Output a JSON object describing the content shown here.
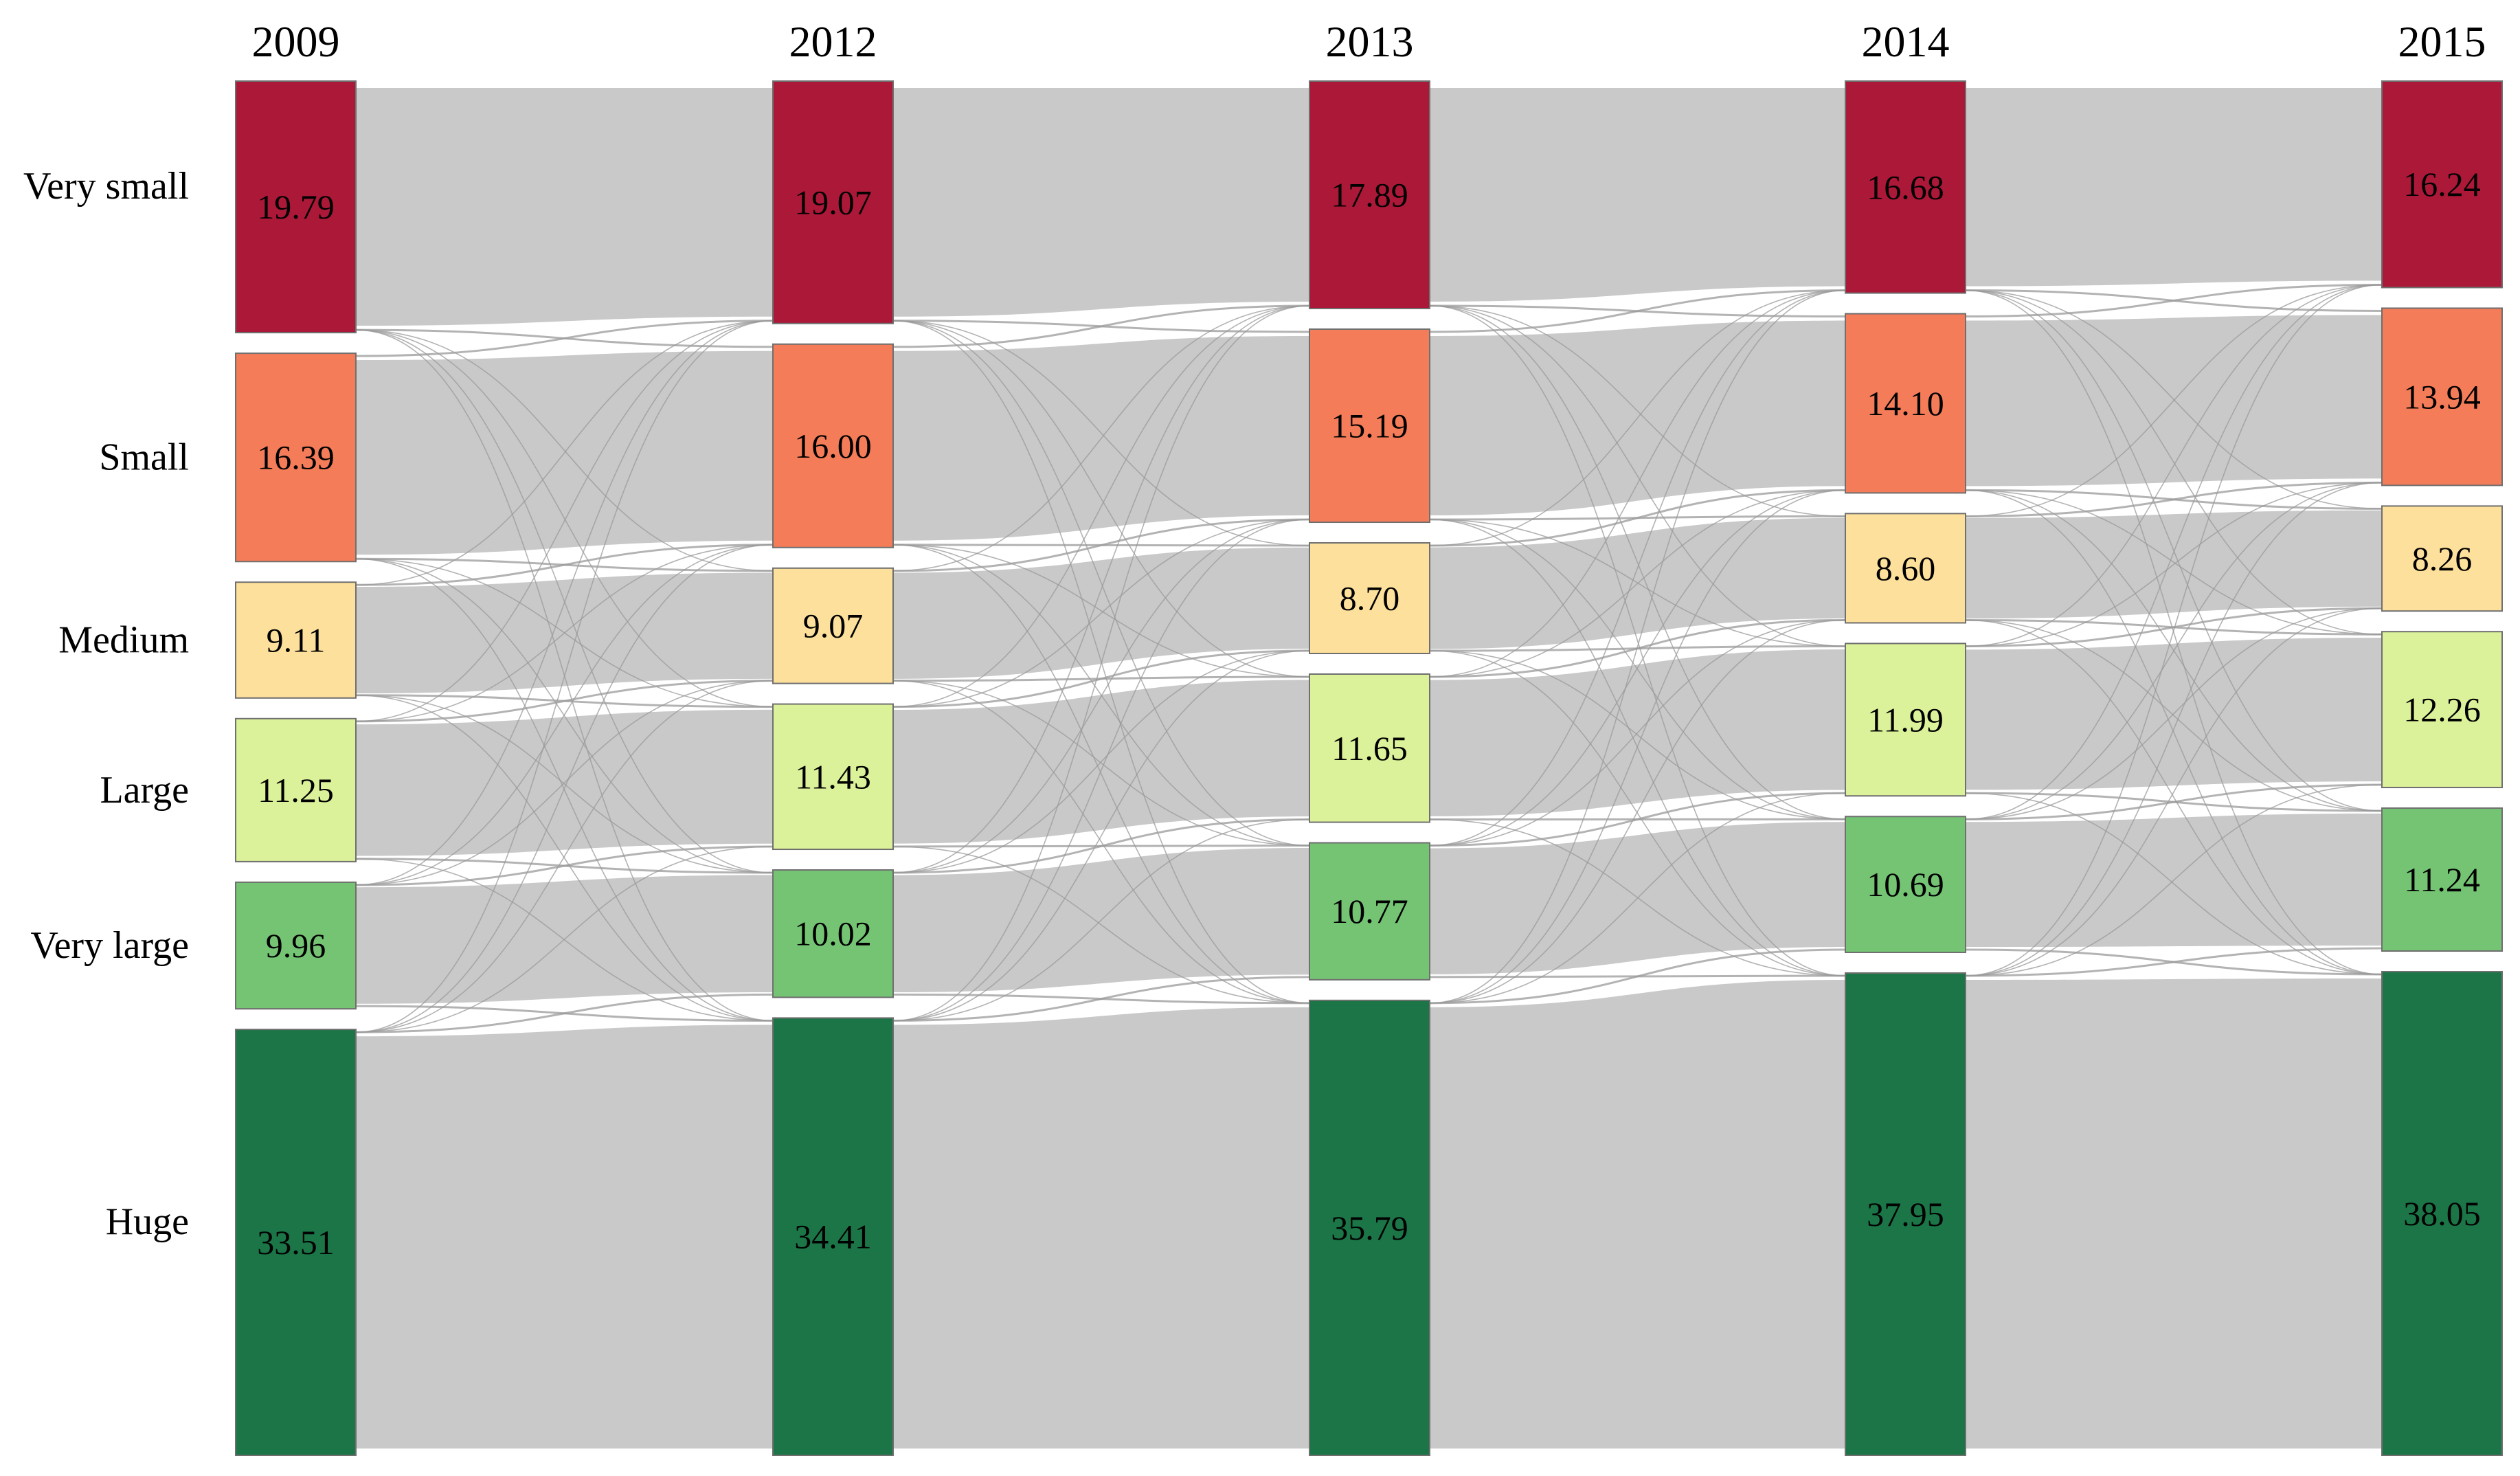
{
  "chart_data": {
    "type": "sankey",
    "title": "",
    "years": [
      "2009",
      "2012",
      "2013",
      "2014",
      "2015"
    ],
    "categories": [
      "Very small",
      "Small",
      "Medium",
      "Large",
      "Very large",
      "Huge"
    ],
    "values": {
      "2009": [
        19.79,
        16.39,
        9.11,
        11.25,
        9.96,
        33.51
      ],
      "2012": [
        19.07,
        16.0,
        9.07,
        11.43,
        10.02,
        34.41
      ],
      "2013": [
        17.89,
        15.19,
        8.7,
        11.65,
        10.77,
        35.79
      ],
      "2014": [
        16.68,
        14.1,
        8.6,
        11.99,
        10.69,
        37.95
      ],
      "2015": [
        16.24,
        13.94,
        8.26,
        12.26,
        11.24,
        38.05
      ]
    },
    "value_labels": {
      "2009": [
        "19.79",
        "16.39",
        "9.11",
        "11.25",
        "9.96",
        "33.51"
      ],
      "2012": [
        "19.07",
        "16.00",
        "9.07",
        "11.43",
        "10.02",
        "34.41"
      ],
      "2013": [
        "17.89",
        "15.19",
        "8.70",
        "11.65",
        "10.77",
        "35.79"
      ],
      "2014": [
        "16.68",
        "14.10",
        "8.60",
        "11.99",
        "10.69",
        "37.95"
      ],
      "2015": [
        "16.24",
        "13.94",
        "8.26",
        "12.26",
        "11.24",
        "38.05"
      ]
    },
    "colors": {
      "Very small": "#ab1838",
      "Small": "#f47c58",
      "Medium": "#fde09b",
      "Large": "#dcf29a",
      "Very large": "#74c474",
      "Huge": "#1b7547"
    },
    "flow_color": "#c9c9c9",
    "cross_flow_color": "#9a9a9a",
    "legend": "none",
    "grid": false
  }
}
